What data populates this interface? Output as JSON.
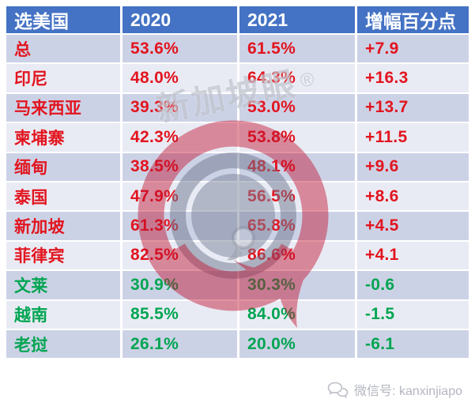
{
  "table": {
    "headers": [
      {
        "key": "country",
        "label": "选美国"
      },
      {
        "key": "y2020",
        "label": "2020"
      },
      {
        "key": "y2021",
        "label": "2021"
      },
      {
        "key": "delta",
        "label": "增幅百分点"
      }
    ],
    "rows": [
      {
        "country": "总",
        "y2020": "53.6%",
        "y2021": "61.5%",
        "delta": "+7.9",
        "trend": "up"
      },
      {
        "country": "印尼",
        "y2020": "48.0%",
        "y2021": "64.3%",
        "delta": "+16.3",
        "trend": "up"
      },
      {
        "country": "马来西亚",
        "y2020": "39.3%",
        "y2021": "53.0%",
        "delta": "+13.7",
        "trend": "up"
      },
      {
        "country": "柬埔寨",
        "y2020": "42.3%",
        "y2021": "53.8%",
        "delta": "+11.5",
        "trend": "up"
      },
      {
        "country": "缅甸",
        "y2020": "38.5%",
        "y2021": "48.1%",
        "delta": "+9.6",
        "trend": "up"
      },
      {
        "country": "泰国",
        "y2020": "47.9%",
        "y2021": "56.5%",
        "delta": "+8.6",
        "trend": "up"
      },
      {
        "country": "新加坡",
        "y2020": "61.3%",
        "y2021": "65.8%",
        "delta": "+4.5",
        "trend": "up"
      },
      {
        "country": "菲律宾",
        "y2020": "82.5%",
        "y2021": "86.6%",
        "delta": "+4.1",
        "trend": "up"
      },
      {
        "country": "文莱",
        "y2020": "30.9%",
        "y2021": "30.3%",
        "delta": "-0.6",
        "trend": "down"
      },
      {
        "country": "越南",
        "y2020": "85.5%",
        "y2021": "84.0%",
        "delta": "-1.5",
        "trend": "down"
      },
      {
        "country": "老挝",
        "y2020": "26.1%",
        "y2021": "20.0%",
        "delta": "-6.1",
        "trend": "down"
      }
    ]
  },
  "chart_data": {
    "type": "table",
    "title": "选美国",
    "columns": [
      "选美国",
      "2020",
      "2021",
      "增幅百分点"
    ],
    "rows": [
      [
        "总",
        53.6,
        61.5,
        7.9
      ],
      [
        "印尼",
        48.0,
        64.3,
        16.3
      ],
      [
        "马来西亚",
        39.3,
        53.0,
        13.7
      ],
      [
        "柬埔寨",
        42.3,
        53.8,
        11.5
      ],
      [
        "缅甸",
        38.5,
        48.1,
        9.6
      ],
      [
        "泰国",
        47.9,
        56.5,
        8.6
      ],
      [
        "新加坡",
        61.3,
        65.8,
        4.5
      ],
      [
        "菲律宾",
        82.5,
        86.6,
        4.1
      ],
      [
        "文莱",
        30.9,
        30.3,
        -0.6
      ],
      [
        "越南",
        85.5,
        84.0,
        -1.5
      ],
      [
        "老挝",
        26.1,
        20.0,
        -6.1
      ]
    ],
    "value_unit": "%",
    "positive_color_meaning": "increase shown red, decrease shown green"
  },
  "watermark": {
    "brand_text": "新加坡眼",
    "registered_mark": "®"
  },
  "footer": {
    "wechat_label": "微信号: kanxinjiapo"
  },
  "colors": {
    "header_bg": "#4472c4",
    "header_text": "#ffffff",
    "row_band_dark": "#ccd2e6",
    "row_band_light": "#e9ebf4",
    "increase_text": "#e2151f",
    "decrease_text": "#00a551",
    "logo_red": "#c20f2e",
    "logo_gray": "#6f7890",
    "footer_text": "#b3b6be"
  }
}
